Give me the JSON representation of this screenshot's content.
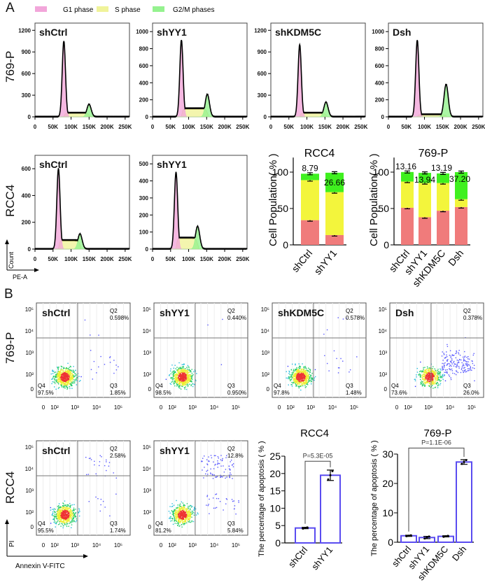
{
  "panel_labels": {
    "a": "A",
    "b": "B"
  },
  "legend": {
    "items": [
      {
        "label": "G1 phase",
        "color": "#f2a6da"
      },
      {
        "label": "S phase",
        "color": "#f0f39a"
      },
      {
        "label": "G2/M phases",
        "color": "#95f28f"
      }
    ]
  },
  "row_labels": {
    "a1": "769-P",
    "a2": "RCC4",
    "b1": "769-P",
    "b2": "RCC4"
  },
  "axis_titles": {
    "count": "Count",
    "pe": "PE-A",
    "pi": "PI",
    "annexin": "Annexin V-FITC"
  },
  "colors": {
    "g1_bar": "#f07b7b",
    "s_bar": "#f3f53c",
    "g2_bar": "#3ff01f",
    "apoptosis_bar": "#5a4cf0"
  },
  "chart_data": [
    {
      "type": "area",
      "id": "hist-769p",
      "xlim": [
        0,
        262
      ],
      "x_ticks": [
        "0",
        "50K",
        "100K",
        "150K",
        "200K",
        "250K"
      ],
      "panels": [
        {
          "title": "shCtrl",
          "y_ticks": [
            0,
            300,
            600,
            900,
            1200
          ],
          "ylim": [
            0,
            1300
          ],
          "g1_peak": 80,
          "g1_height": 1050,
          "s_level": 50,
          "g2_peak": 150,
          "g2_height": 170
        },
        {
          "title": "shYY1",
          "y_ticks": [
            0,
            200,
            400,
            600,
            800,
            1000
          ],
          "ylim": [
            0,
            1100
          ],
          "g1_peak": 80,
          "g1_height": 900,
          "s_level": 90,
          "g2_peak": 152,
          "g2_height": 260
        },
        {
          "title": "shKDM5C",
          "y_ticks": [
            0,
            300,
            600,
            900,
            1200
          ],
          "ylim": [
            0,
            1300
          ],
          "g1_peak": 80,
          "g1_height": 1000,
          "s_level": 50,
          "g2_peak": 153,
          "g2_height": 200
        },
        {
          "title": "Dsh",
          "y_ticks": [
            0,
            200,
            400,
            600,
            800,
            1000
          ],
          "ylim": [
            0,
            1100
          ],
          "g1_peak": 80,
          "g1_height": 900,
          "s_level": 25,
          "g2_peak": 160,
          "g2_height": 380
        }
      ]
    },
    {
      "type": "area",
      "id": "hist-rcc4",
      "xlim": [
        0,
        262
      ],
      "x_ticks": [
        "0",
        "50K",
        "100K",
        "150K",
        "200K",
        "250K"
      ],
      "panels": [
        {
          "title": "shCtrl",
          "y_ticks": [
            0,
            200,
            400,
            600
          ],
          "ylim": [
            0,
            700
          ],
          "g1_peak": 65,
          "g1_height": 600,
          "s_level": 60,
          "g2_peak": 125,
          "g2_height": 110
        },
        {
          "title": "shYY1",
          "y_ticks": [
            0,
            100,
            200,
            300,
            400,
            500
          ],
          "ylim": [
            0,
            550
          ],
          "g1_peak": 65,
          "g1_height": 450,
          "s_level": 60,
          "g2_peak": 125,
          "g2_height": 130
        }
      ]
    },
    {
      "type": "bar",
      "id": "cellcycle-rcc4",
      "stacked": true,
      "title": "RCC4",
      "ylabel": "Cell Population( % )",
      "ylim": [
        0,
        120
      ],
      "y_ticks": [
        0,
        50,
        100
      ],
      "categories": [
        "shCtrl",
        "shYY1"
      ],
      "series": [
        {
          "phase": "G1",
          "values": [
            34,
            13.5
          ]
        },
        {
          "phase": "S",
          "values": [
            55,
            59
          ]
        },
        {
          "phase": "G2/M",
          "values": [
            8.79,
            26.66
          ]
        }
      ],
      "data_labels": [
        "8.79",
        "26.66"
      ]
    },
    {
      "type": "bar",
      "id": "cellcycle-769p",
      "stacked": true,
      "title": "769-P",
      "ylabel": "Cell Population( % )",
      "ylim": [
        0,
        120
      ],
      "y_ticks": [
        0,
        50,
        100
      ],
      "categories": [
        "shCtrl",
        "shYY1",
        "shKDM5C",
        "Dsh"
      ],
      "series": [
        {
          "phase": "G1",
          "values": [
            51,
            38,
            47,
            52
          ]
        },
        {
          "phase": "S",
          "values": [
            36,
            47,
            38,
            10.8
          ]
        },
        {
          "phase": "G2/M",
          "values": [
            13.16,
            13.94,
            13.19,
            37.2
          ]
        }
      ],
      "data_labels": [
        "13.16",
        "13.94",
        "13.19",
        "37.20"
      ]
    },
    {
      "type": "scatter",
      "id": "flow-769p",
      "axis_ticks": [
        "0",
        "10²",
        "10³",
        "10⁴",
        "10⁵"
      ],
      "panels": [
        {
          "title": "shCtrl",
          "q2": "0.598%",
          "q3": "1.85%",
          "q4": "97.5%"
        },
        {
          "title": "shYY1",
          "q2": "0.440%",
          "q3": "0.950%",
          "q4": "98.5%"
        },
        {
          "title": "shKDM5C",
          "q2": "0.578%",
          "q3": "1.48%",
          "q4": "97.8%"
        },
        {
          "title": "Dsh",
          "q2": "0.378%",
          "q3": "26.0%",
          "q4": "73.6%"
        }
      ]
    },
    {
      "type": "scatter",
      "id": "flow-rcc4",
      "axis_ticks": [
        "0",
        "10²",
        "10³",
        "10⁴",
        "10⁵"
      ],
      "panels": [
        {
          "title": "shCtrl",
          "q2": "2.58%",
          "q3": "1.74%",
          "q4": "95.5%"
        },
        {
          "title": "shYY1",
          "q2": "12.8%",
          "q3": "5.84%",
          "q4": "81.2%"
        }
      ]
    },
    {
      "type": "bar",
      "id": "apoptosis-rcc4",
      "title": "RCC4",
      "ylabel": "The percentage of apoptosis ( % )",
      "ylim": [
        0,
        25
      ],
      "y_ticks": [
        0,
        5,
        10,
        15,
        20,
        25
      ],
      "categories": [
        "shCtrl",
        "shYY1"
      ],
      "values": [
        4.3,
        19.5
      ],
      "errors": [
        0.2,
        1.5
      ],
      "annotation": "P=5.3E-05"
    },
    {
      "type": "bar",
      "id": "apoptosis-769p",
      "title": "769-P",
      "ylabel": "The percentage of apoptosis ( % )",
      "ylim": [
        0,
        30
      ],
      "y_ticks": [
        0,
        10,
        20,
        30
      ],
      "categories": [
        "shCtrl",
        "shYY1",
        "shKDM5C",
        "Dsh"
      ],
      "values": [
        2.2,
        1.6,
        2.0,
        27.3
      ],
      "errors": [
        0.2,
        0.4,
        0.2,
        0.8
      ],
      "annotation": "P=1.1E-06"
    }
  ]
}
